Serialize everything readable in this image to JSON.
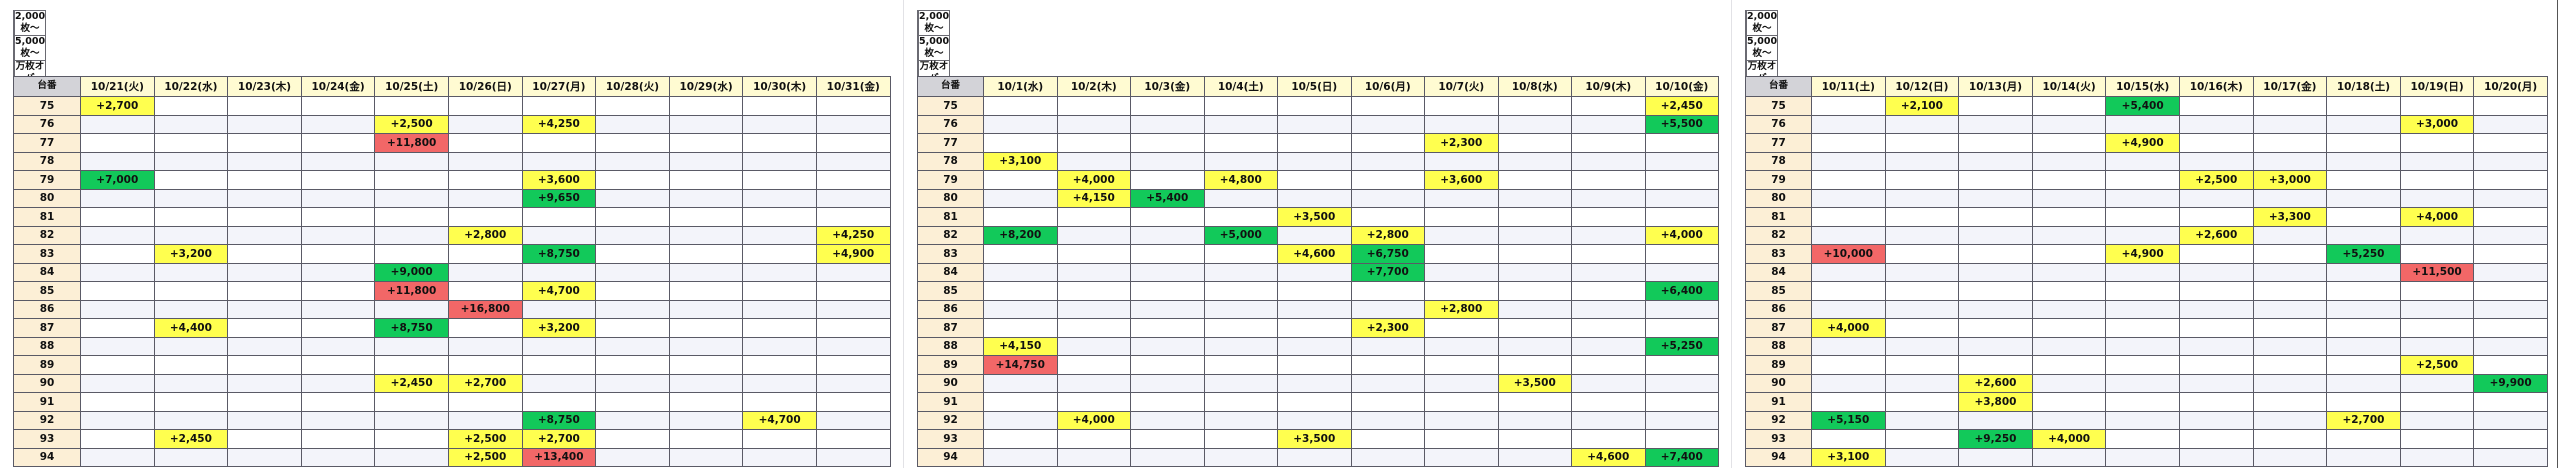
{
  "legend": [
    {
      "label": "2,000枚～",
      "color": "#ffff4f"
    },
    {
      "label": "5,000枚～",
      "color": "#12c95a"
    },
    {
      "label": "万枚オーバー",
      "color": "#f26767"
    }
  ],
  "row_header": "台番",
  "machine_numbers": [
    "75",
    "76",
    "77",
    "78",
    "79",
    "80",
    "81",
    "82",
    "83",
    "84",
    "85",
    "86",
    "87",
    "88",
    "89",
    "90",
    "91",
    "92",
    "93",
    "94"
  ],
  "tables": [
    {
      "days": [
        "10/21(火)",
        "10/22(水)",
        "10/23(木)",
        "10/24(金)",
        "10/25(土)",
        "10/26(日)",
        "10/27(月)",
        "10/28(火)",
        "10/29(水)",
        "10/30(木)",
        "10/31(金)"
      ],
      "rows": [
        [
          "+2,700",
          "",
          "",
          "",
          "",
          "",
          "",
          "",
          "",
          "",
          ""
        ],
        [
          "",
          "",
          "",
          "",
          "+2,500",
          "",
          "+4,250",
          "",
          "",
          "",
          ""
        ],
        [
          "",
          "",
          "",
          "",
          "+11,800",
          "",
          "",
          "",
          "",
          "",
          ""
        ],
        [
          "",
          "",
          "",
          "",
          "",
          "",
          "",
          "",
          "",
          "",
          ""
        ],
        [
          "+7,000",
          "",
          "",
          "",
          "",
          "",
          "+3,600",
          "",
          "",
          "",
          ""
        ],
        [
          "",
          "",
          "",
          "",
          "",
          "",
          "+9,650",
          "",
          "",
          "",
          ""
        ],
        [
          "",
          "",
          "",
          "",
          "",
          "",
          "",
          "",
          "",
          "",
          ""
        ],
        [
          "",
          "",
          "",
          "",
          "",
          "+2,800",
          "",
          "",
          "",
          "",
          "+4,250"
        ],
        [
          "",
          "+3,200",
          "",
          "",
          "",
          "",
          "+8,750",
          "",
          "",
          "",
          "+4,900"
        ],
        [
          "",
          "",
          "",
          "",
          "+9,000",
          "",
          "",
          "",
          "",
          "",
          ""
        ],
        [
          "",
          "",
          "",
          "",
          "+11,800",
          "",
          "+4,700",
          "",
          "",
          "",
          ""
        ],
        [
          "",
          "",
          "",
          "",
          "",
          "+16,800",
          "",
          "",
          "",
          "",
          ""
        ],
        [
          "",
          "+4,400",
          "",
          "",
          "+8,750",
          "",
          "+3,200",
          "",
          "",
          "",
          ""
        ],
        [
          "",
          "",
          "",
          "",
          "",
          "",
          "",
          "",
          "",
          "",
          ""
        ],
        [
          "",
          "",
          "",
          "",
          "",
          "",
          "",
          "",
          "",
          "",
          ""
        ],
        [
          "",
          "",
          "",
          "",
          "+2,450",
          "+2,700",
          "",
          "",
          "",
          "",
          ""
        ],
        [
          "",
          "",
          "",
          "",
          "",
          "",
          "",
          "",
          "",
          "",
          ""
        ],
        [
          "",
          "",
          "",
          "",
          "",
          "",
          "+8,750",
          "",
          "",
          "+4,700",
          ""
        ],
        [
          "",
          "+2,450",
          "",
          "",
          "",
          "+2,500",
          "+2,700",
          "",
          "",
          "",
          ""
        ],
        [
          "",
          "",
          "",
          "",
          "",
          "+2,500",
          "+13,400",
          "",
          "",
          "",
          ""
        ]
      ]
    },
    {
      "days": [
        "10/1(水)",
        "10/2(木)",
        "10/3(金)",
        "10/4(土)",
        "10/5(日)",
        "10/6(月)",
        "10/7(火)",
        "10/8(水)",
        "10/9(木)",
        "10/10(金)"
      ],
      "rows": [
        [
          "",
          "",
          "",
          "",
          "",
          "",
          "",
          "",
          "",
          "+2,450"
        ],
        [
          "",
          "",
          "",
          "",
          "",
          "",
          "",
          "",
          "",
          "+5,500"
        ],
        [
          "",
          "",
          "",
          "",
          "",
          "",
          "+2,300",
          "",
          "",
          ""
        ],
        [
          "+3,100",
          "",
          "",
          "",
          "",
          "",
          "",
          "",
          "",
          ""
        ],
        [
          "",
          "+4,000",
          "",
          "+4,800",
          "",
          "",
          "+3,600",
          "",
          "",
          ""
        ],
        [
          "",
          "+4,150",
          "+5,400",
          "",
          "",
          "",
          "",
          "",
          "",
          ""
        ],
        [
          "",
          "",
          "",
          "",
          "+3,500",
          "",
          "",
          "",
          "",
          ""
        ],
        [
          "+8,200",
          "",
          "",
          "+5,000",
          "",
          "+2,800",
          "",
          "",
          "",
          "+4,000"
        ],
        [
          "",
          "",
          "",
          "",
          "+4,600",
          "+6,750",
          "",
          "",
          "",
          ""
        ],
        [
          "",
          "",
          "",
          "",
          "",
          "+7,700",
          "",
          "",
          "",
          ""
        ],
        [
          "",
          "",
          "",
          "",
          "",
          "",
          "",
          "",
          "",
          "+6,400"
        ],
        [
          "",
          "",
          "",
          "",
          "",
          "",
          "+2,800",
          "",
          "",
          ""
        ],
        [
          "",
          "",
          "",
          "",
          "",
          "+2,300",
          "",
          "",
          "",
          ""
        ],
        [
          "+4,150",
          "",
          "",
          "",
          "",
          "",
          "",
          "",
          "",
          "+5,250"
        ],
        [
          "+14,750",
          "",
          "",
          "",
          "",
          "",
          "",
          "",
          "",
          ""
        ],
        [
          "",
          "",
          "",
          "",
          "",
          "",
          "",
          "+3,500",
          "",
          ""
        ],
        [
          "",
          "",
          "",
          "",
          "",
          "",
          "",
          "",
          "",
          ""
        ],
        [
          "",
          "+4,000",
          "",
          "",
          "",
          "",
          "",
          "",
          "",
          ""
        ],
        [
          "",
          "",
          "",
          "",
          "+3,500",
          "",
          "",
          "",
          "",
          ""
        ],
        [
          "",
          "",
          "",
          "",
          "",
          "",
          "",
          "",
          "+4,600",
          "+7,400"
        ]
      ]
    },
    {
      "days": [
        "10/11(土)",
        "10/12(日)",
        "10/13(月)",
        "10/14(火)",
        "10/15(水)",
        "10/16(木)",
        "10/17(金)",
        "10/18(土)",
        "10/19(日)",
        "10/20(月)"
      ],
      "rows": [
        [
          "",
          "+2,100",
          "",
          "",
          "+5,400",
          "",
          "",
          "",
          "",
          ""
        ],
        [
          "",
          "",
          "",
          "",
          "",
          "",
          "",
          "",
          "+3,000",
          ""
        ],
        [
          "",
          "",
          "",
          "",
          "+4,900",
          "",
          "",
          "",
          "",
          ""
        ],
        [
          "",
          "",
          "",
          "",
          "",
          "",
          "",
          "",
          "",
          ""
        ],
        [
          "",
          "",
          "",
          "",
          "",
          "+2,500",
          "+3,000",
          "",
          "",
          ""
        ],
        [
          "",
          "",
          "",
          "",
          "",
          "",
          "",
          "",
          "",
          ""
        ],
        [
          "",
          "",
          "",
          "",
          "",
          "",
          "+3,300",
          "",
          "+4,000",
          ""
        ],
        [
          "",
          "",
          "",
          "",
          "",
          "+2,600",
          "",
          "",
          "",
          ""
        ],
        [
          "+10,000",
          "",
          "",
          "",
          "+4,900",
          "",
          "",
          "+5,250",
          "",
          ""
        ],
        [
          "",
          "",
          "",
          "",
          "",
          "",
          "",
          "",
          "+11,500",
          ""
        ],
        [
          "",
          "",
          "",
          "",
          "",
          "",
          "",
          "",
          "",
          ""
        ],
        [
          "",
          "",
          "",
          "",
          "",
          "",
          "",
          "",
          "",
          ""
        ],
        [
          "+4,000",
          "",
          "",
          "",
          "",
          "",
          "",
          "",
          "",
          ""
        ],
        [
          "",
          "",
          "",
          "",
          "",
          "",
          "",
          "",
          "",
          ""
        ],
        [
          "",
          "",
          "",
          "",
          "",
          "",
          "",
          "",
          "+2,500",
          ""
        ],
        [
          "",
          "",
          "+2,600",
          "",
          "",
          "",
          "",
          "",
          "",
          "+9,900"
        ],
        [
          "",
          "",
          "+3,800",
          "",
          "",
          "",
          "",
          "",
          "",
          ""
        ],
        [
          "+5,150",
          "",
          "",
          "",
          "",
          "",
          "",
          "+2,700",
          "",
          ""
        ],
        [
          "",
          "",
          "+9,250",
          "+4,000",
          "",
          "",
          "",
          "",
          "",
          ""
        ],
        [
          "+3,100",
          "",
          "",
          "",
          "",
          "",
          "",
          "",
          "",
          ""
        ]
      ]
    }
  ]
}
